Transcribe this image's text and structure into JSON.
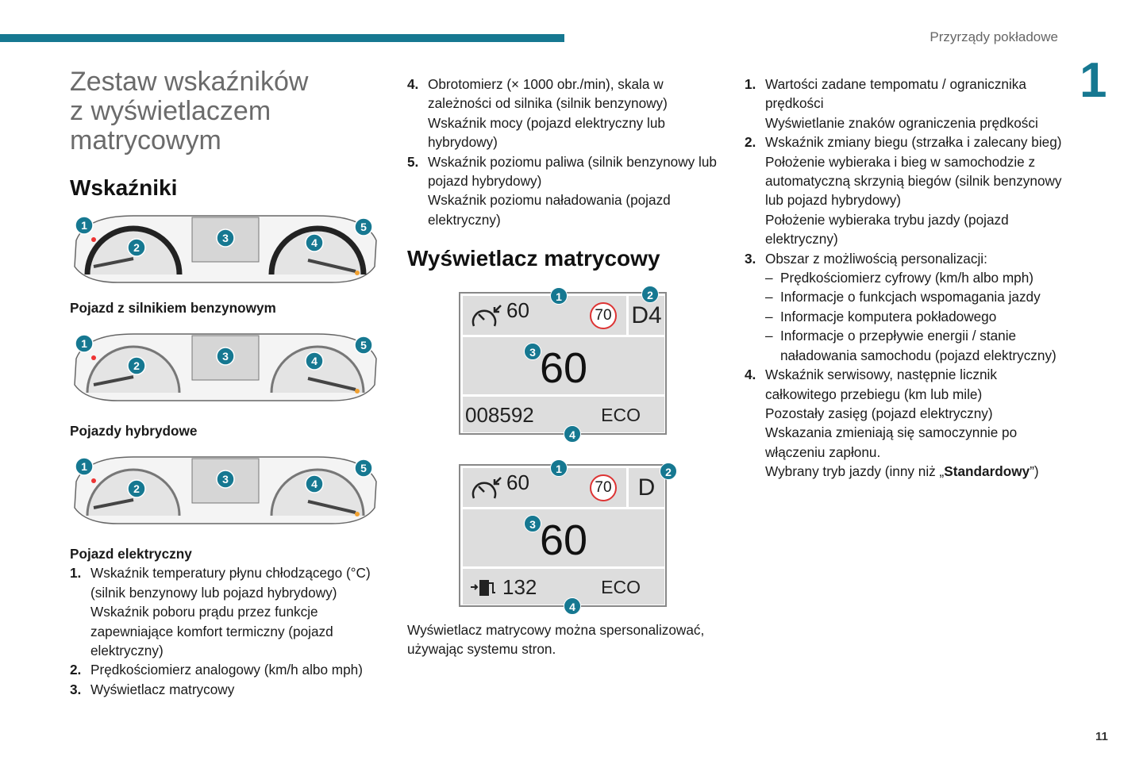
{
  "header": {
    "running_title": "Przyrządy pokładowe",
    "chapter": "1",
    "page_number": "11",
    "accent_color": "#167891"
  },
  "col1": {
    "title_lines": [
      "Zestaw wskaźników",
      "z wyświetlaczem",
      "matrycowym"
    ],
    "heading": "Wskaźniki",
    "clusters": [
      {
        "caption": "Pojazd z silnikiem benzynowym",
        "badges": [
          "1",
          "2",
          "3",
          "4",
          "5"
        ]
      },
      {
        "caption": "Pojazdy hybrydowe",
        "badges": [
          "1",
          "2",
          "3",
          "4",
          "5"
        ]
      },
      {
        "caption": "Pojazd elektryczny",
        "badges": [
          "1",
          "2",
          "3",
          "4",
          "5"
        ]
      }
    ],
    "items": [
      {
        "n": "1.",
        "lines": [
          "Wskaźnik temperatury płynu chłodzącego (°C) (silnik benzynowy lub pojazd hybrydowy)",
          "Wskaźnik poboru prądu przez funkcje zapewniające komfort termiczny (pojazd elektryczny)"
        ]
      },
      {
        "n": "2.",
        "lines": [
          "Prędkościomierz analogowy (km/h albo mph)"
        ]
      },
      {
        "n": "3.",
        "lines": [
          "Wyświetlacz matrycowy"
        ]
      }
    ]
  },
  "col2": {
    "items": [
      {
        "n": "4.",
        "lines": [
          "Obrotomierz (× 1000 obr./min), skala w zależności od silnika (silnik benzynowy)",
          "Wskaźnik mocy (pojazd elektryczny lub hybrydowy)"
        ]
      },
      {
        "n": "5.",
        "lines": [
          "Wskaźnik poziomu paliwa (silnik benzynowy lub pojazd hybrydowy)",
          "Wskaźnik poziomu naładowania (pojazd elektryczny)"
        ]
      }
    ],
    "heading": "Wyświetlacz matrycowy",
    "displays": [
      {
        "set_speed": "60",
        "speed_limit": "70",
        "gear": "D4",
        "speed": "60",
        "bottom_left": "008592",
        "mode": "ECO",
        "bottom_icon": "none"
      },
      {
        "set_speed": "60",
        "speed_limit": "70",
        "gear": "D",
        "speed": "60",
        "bottom_left": "132",
        "mode": "ECO",
        "bottom_icon": "charging-range-icon"
      }
    ],
    "badges": [
      "1",
      "2",
      "3",
      "4"
    ],
    "note": "Wyświetlacz matrycowy można spersonalizować, używając systemu stron."
  },
  "col3": {
    "items": [
      {
        "n": "1.",
        "lines": [
          "Wartości zadane tempomatu / ogranicznika prędkości",
          "Wyświetlanie znaków ograniczenia prędkości"
        ]
      },
      {
        "n": "2.",
        "lines": [
          "Wskaźnik zmiany biegu (strzałka i zalecany bieg)",
          "Położenie wybieraka i bieg w samochodzie z automatyczną skrzynią biegów (silnik benzynowy lub pojazd hybrydowy)",
          "Położenie wybieraka trybu jazdy (pojazd elektryczny)"
        ]
      },
      {
        "n": "3.",
        "lines": [
          "Obszar z możliwością personalizacji:"
        ],
        "subs": [
          "Prędkościomierz cyfrowy (km/h albo mph)",
          "Informacje o funkcjach wspomagania jazdy",
          "Informacje komputera pokładowego",
          "Informacje o przepływie energii / stanie naładowania samochodu (pojazd elektryczny)"
        ]
      },
      {
        "n": "4.",
        "lines": [
          "Wskaźnik serwisowy, następnie licznik całkowitego przebiegu (km lub mile)",
          "Pozostały zasięg (pojazd elektryczny)",
          "Wskazania zmieniają się samoczynnie po włączeniu zapłonu."
        ],
        "last_prefix": "Wybrany tryb jazdy (inny niż „",
        "last_bold": "Standardowy",
        "last_suffix": "”)"
      }
    ]
  }
}
